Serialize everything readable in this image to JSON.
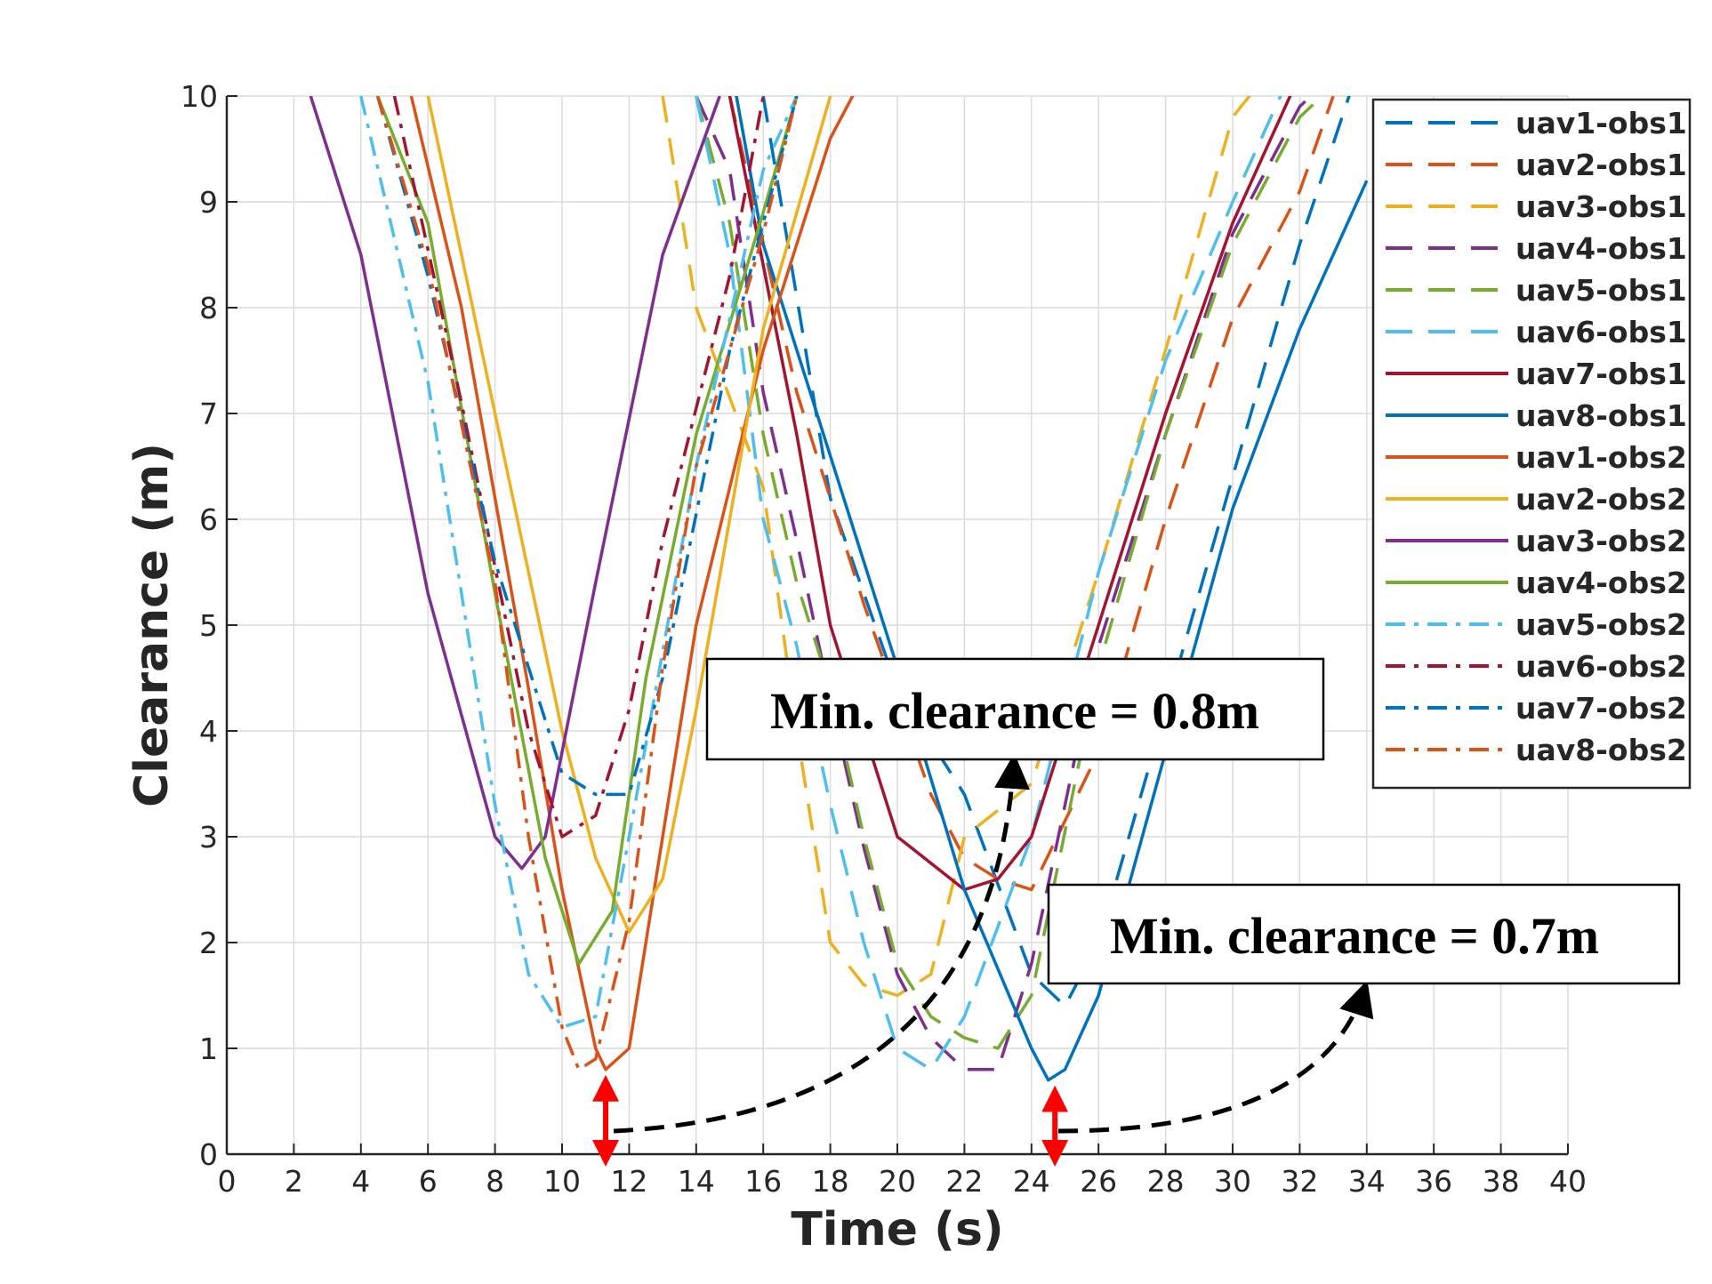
{
  "chart_data": {
    "type": "line",
    "title": "",
    "xlabel": "Time (s)",
    "ylabel": "Clearance (m)",
    "xlim": [
      0,
      40
    ],
    "ylim": [
      0,
      10
    ],
    "grid": true,
    "legend_position": "top-right",
    "x_ticks": [
      0,
      2,
      4,
      6,
      8,
      10,
      12,
      14,
      16,
      18,
      20,
      22,
      24,
      26,
      28,
      30,
      32,
      34,
      36,
      38,
      40
    ],
    "y_ticks": [
      0,
      1,
      2,
      3,
      4,
      5,
      6,
      7,
      8,
      9,
      10
    ],
    "x_tick_labels": [
      "0",
      "2",
      "4",
      "6",
      "8",
      "10",
      "12",
      "14",
      "16",
      "18",
      "20",
      "22",
      "24",
      "26",
      "28",
      "30",
      "32",
      "34",
      "36",
      "38",
      "40"
    ],
    "y_tick_labels": [
      "0",
      "1",
      "2",
      "3",
      "4",
      "5",
      "6",
      "7",
      "8",
      "9",
      "10"
    ],
    "series": [
      {
        "name": "uav1-obs1",
        "color": "#0072BD",
        "style": "dashed",
        "x": [
          16,
          18,
          20,
          22,
          24,
          25,
          26,
          28,
          30,
          32,
          34
        ],
        "y": [
          10,
          6.2,
          4.4,
          3.4,
          1.7,
          1.4,
          2.0,
          4.2,
          6.4,
          8.6,
          10.5
        ]
      },
      {
        "name": "uav2-obs1",
        "color": "#D95319",
        "style": "dashed",
        "x": [
          15,
          17,
          19,
          21,
          22,
          23,
          24,
          26,
          28,
          30,
          32,
          33
        ],
        "y": [
          10,
          7.2,
          5.2,
          3.4,
          2.8,
          2.6,
          2.5,
          3.8,
          6.0,
          7.9,
          9.1,
          10
        ]
      },
      {
        "name": "uav3-obs1",
        "color": "#EDB120",
        "style": "dashed",
        "x": [
          13,
          14,
          16,
          17,
          18,
          19,
          20,
          21,
          22,
          24,
          26,
          28,
          30,
          32
        ],
        "y": [
          10,
          8.0,
          6.3,
          4.0,
          2.0,
          1.6,
          1.5,
          1.7,
          3.0,
          3.5,
          5.5,
          7.6,
          9.8,
          10.6
        ]
      },
      {
        "name": "uav4-obs1",
        "color": "#7E2F8E",
        "style": "dashed",
        "x": [
          14,
          15,
          16,
          17,
          18,
          19,
          20,
          21,
          22,
          23,
          24,
          26,
          28,
          30,
          32,
          33
        ],
        "y": [
          10,
          9.3,
          7.2,
          5.8,
          4.3,
          2.9,
          1.7,
          1.1,
          0.8,
          0.8,
          1.8,
          4.8,
          6.8,
          8.7,
          9.9,
          10.2
        ]
      },
      {
        "name": "uav5-obs1",
        "color": "#77AC30",
        "style": "dashed",
        "x": [
          14,
          15,
          16,
          17,
          18,
          19,
          20,
          21,
          22,
          23,
          24,
          26,
          28,
          30,
          32,
          33
        ],
        "y": [
          10,
          8.8,
          6.8,
          5.4,
          4.4,
          3.0,
          1.8,
          1.3,
          1.1,
          1.0,
          1.5,
          4.6,
          6.8,
          8.6,
          9.8,
          10.1
        ]
      },
      {
        "name": "uav6-obs1",
        "color": "#4DBEEE",
        "style": "dashed",
        "x": [
          14,
          15,
          16,
          17,
          18,
          19,
          20,
          21,
          22,
          24,
          26,
          28,
          30,
          32
        ],
        "y": [
          10,
          8.5,
          6.0,
          4.8,
          3.3,
          2.0,
          1.0,
          0.8,
          1.3,
          3.0,
          5.5,
          7.5,
          9.0,
          10.4
        ]
      },
      {
        "name": "uav7-obs1",
        "color": "#A2142F",
        "style": "solid",
        "x": [
          15,
          16,
          17,
          18,
          20,
          22,
          23,
          24,
          26,
          28,
          30,
          32
        ],
        "y": [
          10,
          8.4,
          6.8,
          5.0,
          3.0,
          2.5,
          2.6,
          3.0,
          5.0,
          7.0,
          8.8,
          10.2
        ]
      },
      {
        "name": "uav8-obs1",
        "color": "#0072BD",
        "style": "solid",
        "x": [
          15.2,
          16,
          18,
          20,
          22,
          24,
          24.5,
          25,
          26,
          28,
          30,
          32,
          34
        ],
        "y": [
          10,
          8.6,
          6.6,
          4.6,
          2.5,
          1.0,
          0.7,
          0.8,
          1.5,
          3.8,
          6.1,
          7.8,
          9.2
        ]
      },
      {
        "name": "uav1-obs2",
        "color": "#D95319",
        "style": "solid",
        "x": [
          5.5,
          7,
          9,
          10,
          11,
          11.3,
          12,
          13,
          14,
          16,
          18,
          19
        ],
        "y": [
          10,
          8.0,
          4.4,
          2.5,
          1.0,
          0.8,
          1.0,
          3.0,
          5.0,
          7.6,
          9.6,
          10.2
        ]
      },
      {
        "name": "uav2-obs2",
        "color": "#EDB120",
        "style": "solid",
        "x": [
          6,
          8,
          10,
          11,
          12,
          13,
          14,
          16,
          18
        ],
        "y": [
          10,
          7.0,
          4.0,
          2.8,
          2.1,
          2.6,
          4.2,
          7.8,
          10.0
        ]
      },
      {
        "name": "uav3-obs2",
        "color": "#7E2F8E",
        "style": "solid",
        "x": [
          2.5,
          4,
          6,
          8,
          8.8,
          9.5,
          11,
          13,
          14.7
        ],
        "y": [
          10,
          8.5,
          5.3,
          3.0,
          2.7,
          3.0,
          5.4,
          8.5,
          10
        ]
      },
      {
        "name": "uav4-obs2",
        "color": "#77AC30",
        "style": "solid",
        "x": [
          4.5,
          6,
          8,
          9.5,
          10.5,
          11.5,
          12.5,
          14,
          16,
          17
        ],
        "y": [
          10,
          8.8,
          5.3,
          2.8,
          1.8,
          2.3,
          4.5,
          6.8,
          8.9,
          10
        ]
      },
      {
        "name": "uav5-obs2",
        "color": "#4DBEEE",
        "style": "dashdot",
        "x": [
          4,
          6,
          8,
          9,
          10,
          11,
          12,
          14,
          16,
          17
        ],
        "y": [
          10,
          7.3,
          3.3,
          1.7,
          1.2,
          1.3,
          3.0,
          6.5,
          9.3,
          10
        ]
      },
      {
        "name": "uav6-obs2",
        "color": "#A2142F",
        "style": "dashdot",
        "x": [
          5,
          7,
          9,
          10,
          11,
          12,
          13,
          15,
          16
        ],
        "y": [
          10,
          7.1,
          4.0,
          3.0,
          3.2,
          4.2,
          5.8,
          8.3,
          10
        ]
      },
      {
        "name": "uav7-obs2",
        "color": "#0072BD",
        "style": "dashdot",
        "x": [
          4.5,
          6,
          8,
          10,
          11,
          12,
          13,
          15,
          17
        ],
        "y": [
          10,
          8.3,
          5.6,
          3.6,
          3.4,
          3.4,
          4.5,
          7.6,
          10
        ]
      },
      {
        "name": "uav8-obs2",
        "color": "#D95319",
        "style": "dashdot",
        "x": [
          4.5,
          6,
          8,
          9,
          10,
          10.5,
          11,
          12,
          13,
          14,
          16,
          17
        ],
        "y": [
          10,
          8.4,
          5.4,
          3.0,
          1.2,
          0.8,
          0.9,
          2.2,
          4.6,
          6.5,
          8.7,
          10
        ]
      }
    ],
    "annotations": [
      {
        "text": "Min. clearance = 0.8m",
        "marker_x": 11.3,
        "marker_y": 0.8
      },
      {
        "text": "Min. clearance = 0.7m",
        "marker_x": 24.7,
        "marker_y": 0.7
      }
    ]
  }
}
